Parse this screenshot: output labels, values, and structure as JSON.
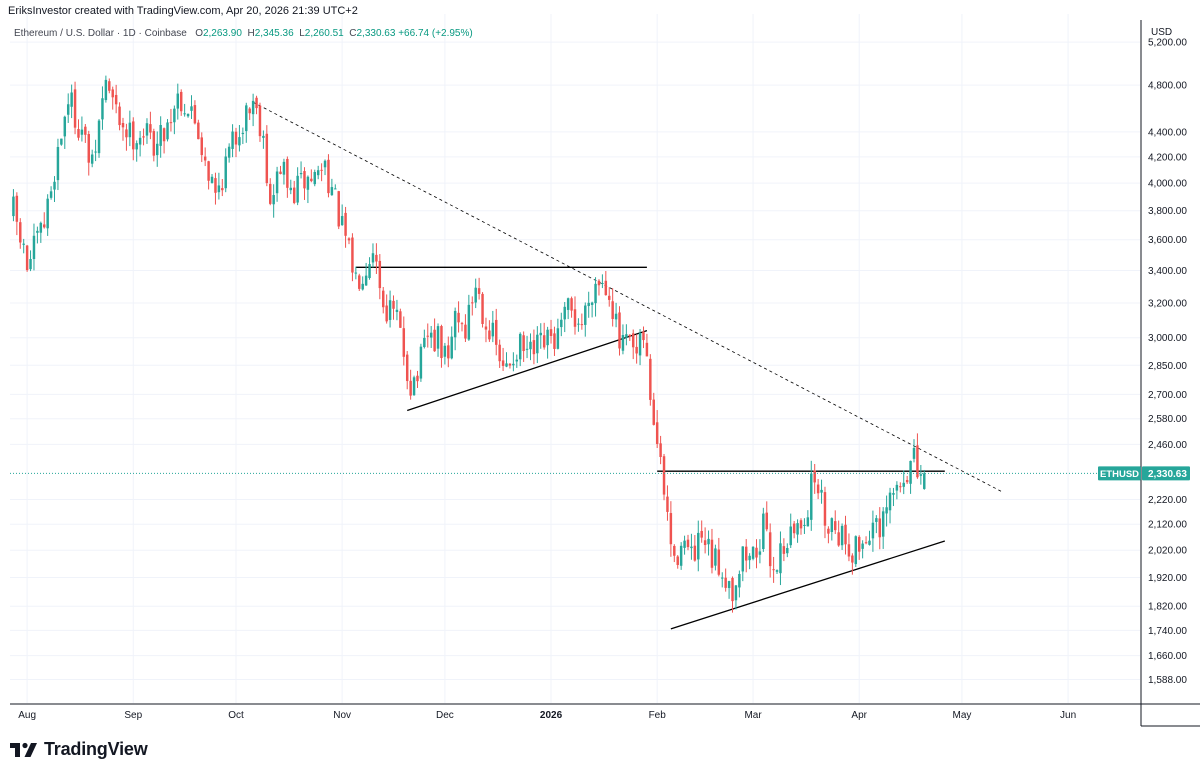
{
  "header": {
    "credit": "EriksInvestor created with TradingView.com, Apr 20, 2026 21:39 UTC+2",
    "symbol": "Ethereum / U.S. Dollar · 1D · Coinbase",
    "o_label": "O",
    "o": "2,263.90",
    "h_label": "H",
    "h": "2,345.36",
    "l_label": "L",
    "l": "2,260.51",
    "c_label": "C",
    "c": "2,330.63",
    "change": "+66.74 (+2.95%)"
  },
  "price_scale": {
    "currency": "USD"
  },
  "brand": {
    "name": "TradingView",
    "logo_icon": "tradingview-logo-icon"
  },
  "colors": {
    "up": "#26a69a",
    "down": "#ef5350",
    "last_price": "#26a69a",
    "drawing": "#000000",
    "grid": "#f0f3fa"
  },
  "chart_data": {
    "type": "candlestick",
    "instrument": "Ethereum / U.S. Dollar",
    "timeframe": "1D",
    "exchange": "Coinbase",
    "y_scale": "log",
    "ylim": [
      1520,
      5480
    ],
    "xlim": [
      "2025-07-27",
      "2026-06-22"
    ],
    "y_ticks": [
      5200,
      4800,
      4400,
      4200,
      4000,
      3800,
      3600,
      3400,
      3200,
      3000,
      2850,
      2700,
      2580,
      2460,
      2220,
      2120,
      2020,
      1920,
      1820,
      1740,
      1660,
      1588
    ],
    "y_tick_labels": [
      "5,200.00",
      "4,800.00",
      "4,400.00",
      "4,200.00",
      "4,000.00",
      "3,800.00",
      "3,600.00",
      "3,400.00",
      "3,200.00",
      "3,000.00",
      "2,850.00",
      "2,700.00",
      "2,580.00",
      "2,460.00",
      "2,220.00",
      "2,120.00",
      "2,020.00",
      "1,920.00",
      "1,820.00",
      "1,740.00",
      "1,660.00",
      "1,588.00"
    ],
    "x_ticks": [
      {
        "date": "2025-08-01",
        "label": "Aug",
        "bold": false
      },
      {
        "date": "2025-09-01",
        "label": "Sep",
        "bold": false
      },
      {
        "date": "2025-10-01",
        "label": "Oct",
        "bold": false
      },
      {
        "date": "2025-11-01",
        "label": "Nov",
        "bold": false
      },
      {
        "date": "2025-12-01",
        "label": "Dec",
        "bold": false
      },
      {
        "date": "2026-01-01",
        "label": "2026",
        "bold": true
      },
      {
        "date": "2026-02-01",
        "label": "Feb",
        "bold": false
      },
      {
        "date": "2026-03-01",
        "label": "Mar",
        "bold": false
      },
      {
        "date": "2026-04-01",
        "label": "Apr",
        "bold": false
      },
      {
        "date": "2026-05-01",
        "label": "May",
        "bold": false
      },
      {
        "date": "2026-06-01",
        "label": "Jun",
        "bold": false
      }
    ],
    "last_price": {
      "label": "ETHUSD",
      "value": 2330.63,
      "value_label": "2,330.63"
    },
    "path": [
      [
        "2025-07-28",
        3800
      ],
      [
        "2025-08-01",
        3420
      ],
      [
        "2025-08-06",
        3700
      ],
      [
        "2025-08-10",
        4250
      ],
      [
        "2025-08-13",
        4700
      ],
      [
        "2025-08-17",
        4400
      ],
      [
        "2025-08-20",
        4100
      ],
      [
        "2025-08-24",
        4850
      ],
      [
        "2025-08-27",
        4550
      ],
      [
        "2025-08-31",
        4380
      ],
      [
        "2025-09-04",
        4400
      ],
      [
        "2025-09-08",
        4300
      ],
      [
        "2025-09-12",
        4550
      ],
      [
        "2025-09-14",
        4720
      ],
      [
        "2025-09-19",
        4500
      ],
      [
        "2025-09-22",
        4200
      ],
      [
        "2025-09-25",
        3900
      ],
      [
        "2025-09-28",
        4150
      ],
      [
        "2025-10-02",
        4450
      ],
      [
        "2025-10-06",
        4680
      ],
      [
        "2025-10-09",
        4400
      ],
      [
        "2025-10-11",
        3800
      ],
      [
        "2025-10-14",
        4150
      ],
      [
        "2025-10-17",
        3900
      ],
      [
        "2025-10-20",
        4000
      ],
      [
        "2025-10-24",
        4050
      ],
      [
        "2025-10-27",
        4150
      ],
      [
        "2025-10-30",
        3850
      ],
      [
        "2025-11-03",
        3500
      ],
      [
        "2025-11-05",
        3350
      ],
      [
        "2025-11-08",
        3450
      ],
      [
        "2025-11-10",
        3580
      ],
      [
        "2025-11-13",
        3200
      ],
      [
        "2025-11-17",
        3100
      ],
      [
        "2025-11-21",
        2750
      ],
      [
        "2025-11-23",
        2800
      ],
      [
        "2025-11-26",
        3000
      ],
      [
        "2025-11-29",
        2980
      ],
      [
        "2025-12-02",
        2850
      ],
      [
        "2025-12-04",
        3150
      ],
      [
        "2025-12-07",
        3050
      ],
      [
        "2025-12-10",
        3320
      ],
      [
        "2025-12-13",
        3100
      ],
      [
        "2025-12-16",
        2950
      ],
      [
        "2025-12-18",
        2800
      ],
      [
        "2025-12-22",
        2950
      ],
      [
        "2025-12-26",
        2900
      ],
      [
        "2025-12-30",
        2960
      ],
      [
        "2026-01-03",
        3000
      ],
      [
        "2026-01-06",
        3150
      ],
      [
        "2026-01-10",
        3080
      ],
      [
        "2026-01-13",
        3300
      ],
      [
        "2026-01-15",
        3350
      ],
      [
        "2026-01-18",
        3300
      ],
      [
        "2026-01-21",
        2950
      ],
      [
        "2026-01-24",
        2950
      ],
      [
        "2026-01-26",
        2880
      ],
      [
        "2026-01-28",
        3000
      ],
      [
        "2026-01-30",
        2700
      ],
      [
        "2026-02-02",
        2350
      ],
      [
        "2026-02-04",
        2150
      ],
      [
        "2026-02-06",
        1950
      ],
      [
        "2026-02-08",
        2080
      ],
      [
        "2026-02-11",
        1980
      ],
      [
        "2026-02-14",
        2050
      ],
      [
        "2026-02-17",
        1980
      ],
      [
        "2026-02-20",
        1950
      ],
      [
        "2026-02-23",
        1880
      ],
      [
        "2026-02-26",
        2000
      ],
      [
        "2026-03-01",
        2000
      ],
      [
        "2026-03-04",
        2100
      ],
      [
        "2026-03-07",
        1950
      ],
      [
        "2026-03-10",
        2050
      ],
      [
        "2026-03-14",
        2100
      ],
      [
        "2026-03-17",
        2200
      ],
      [
        "2026-03-19",
        2330
      ],
      [
        "2026-03-22",
        2150
      ],
      [
        "2026-03-25",
        2120
      ],
      [
        "2026-03-27",
        2080
      ],
      [
        "2026-03-30",
        2020
      ],
      [
        "2026-04-02",
        2050
      ],
      [
        "2026-04-05",
        2120
      ],
      [
        "2026-04-07",
        2060
      ],
      [
        "2026-04-10",
        2220
      ],
      [
        "2026-04-13",
        2280
      ],
      [
        "2026-04-15",
        2350
      ],
      [
        "2026-04-17",
        2380
      ],
      [
        "2026-04-19",
        2270
      ],
      [
        "2026-04-20",
        2330.63
      ]
    ],
    "drawings": [
      {
        "kind": "dashed-trendline",
        "from": [
          "2025-10-06",
          4650
        ],
        "to": [
          "2026-05-13",
          2250
        ]
      },
      {
        "kind": "line",
        "from": [
          "2025-11-05",
          3420
        ],
        "to": [
          "2026-01-29",
          3420
        ]
      },
      {
        "kind": "line",
        "from": [
          "2025-11-20",
          2620
        ],
        "to": [
          "2026-01-29",
          3040
        ]
      },
      {
        "kind": "line",
        "from": [
          "2026-02-01",
          2340
        ],
        "to": [
          "2026-04-26",
          2340
        ]
      },
      {
        "kind": "line",
        "from": [
          "2026-02-05",
          1745
        ],
        "to": [
          "2026-04-26",
          2055
        ]
      }
    ]
  }
}
